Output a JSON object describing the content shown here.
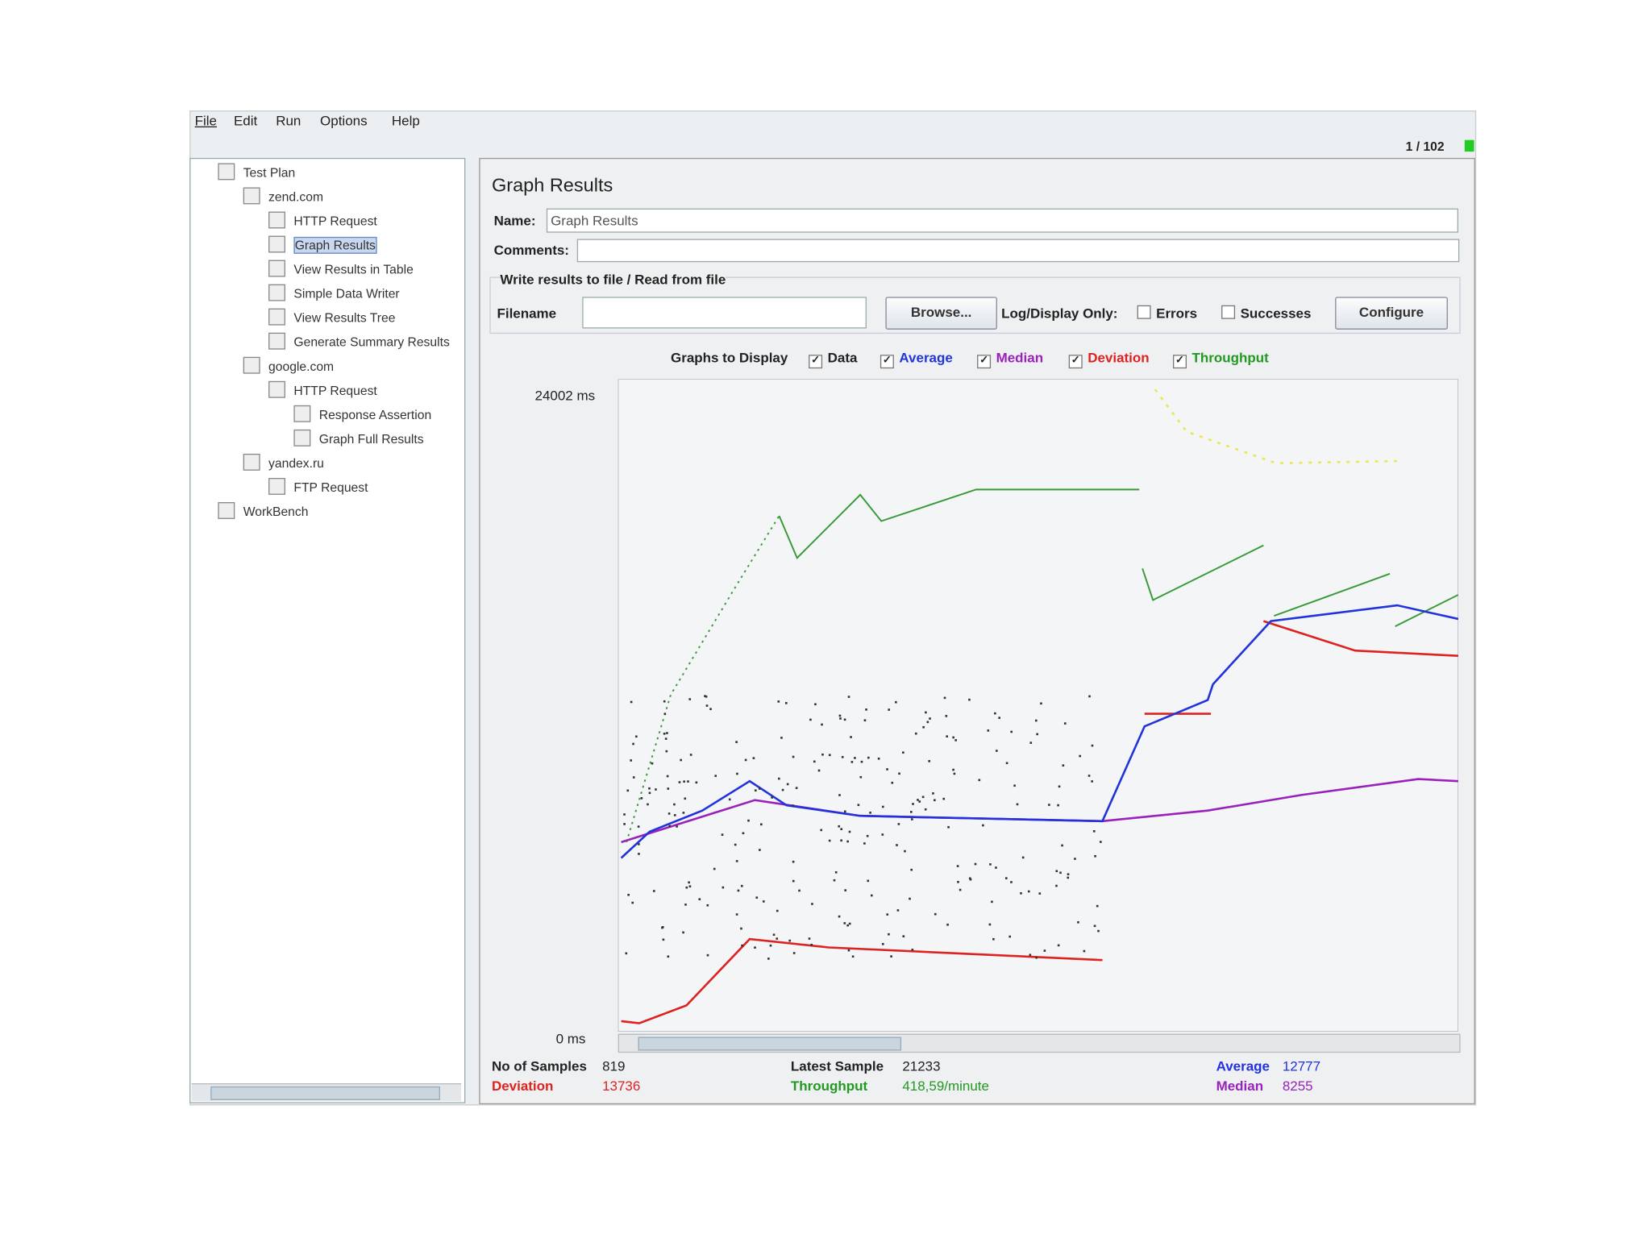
{
  "menu": [
    "File",
    "Edit",
    "Run",
    "Options",
    "Help"
  ],
  "status": "1 / 102",
  "tree": [
    "Test Plan",
    "zend.com",
    "HTTP Request",
    "Graph Results",
    "View Results in Table",
    "Simple Data Writer",
    "View Results Tree",
    "Generate Summary Results",
    "google.com",
    "HTTP Request",
    "Response Assertion",
    "Graph Full Results",
    "yandex.ru",
    "FTP Request",
    "WorkBench"
  ],
  "panel": {
    "title": "Graph Results",
    "name_label": "Name:",
    "name_value": "Graph Results",
    "comments_label": "Comments:",
    "file_group": "Write results to file / Read from file",
    "filename_label": "Filename",
    "browse": "Browse...",
    "log_label": "Log/Display Only:",
    "errors": "Errors",
    "successes": "Successes",
    "configure": "Configure",
    "graphs_label": "Graphs to Display",
    "graphs": [
      "Data",
      "Average",
      "Median",
      "Deviation",
      "Throughput"
    ],
    "y_max": "24002 ms",
    "y_min": "0 ms"
  },
  "stats": {
    "samples_label": "No of Samples",
    "samples": 819,
    "latest_label": "Latest Sample",
    "latest": 21233,
    "average_label": "Average",
    "average": 12777,
    "deviation_label": "Deviation",
    "deviation": 13736,
    "throughput_label": "Throughput",
    "throughput": "418,59/minute",
    "median_label": "Median",
    "median": 8255
  }
}
